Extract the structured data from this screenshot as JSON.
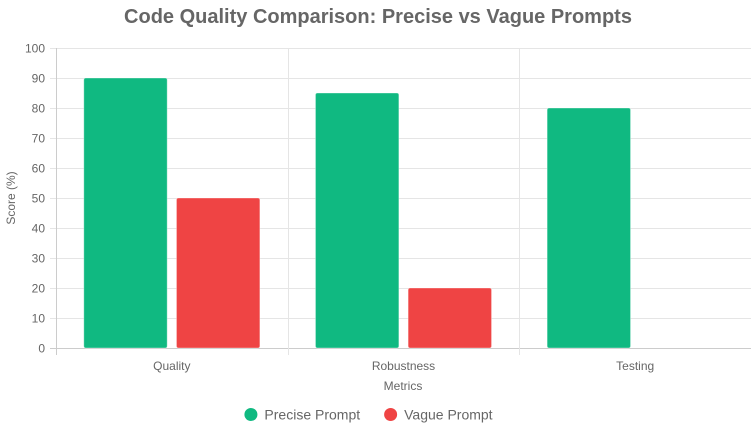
{
  "chart_data": {
    "type": "bar",
    "title": "Code Quality Comparison: Precise vs Vague Prompts",
    "xlabel": "Metrics",
    "ylabel": "Score (%)",
    "categories": [
      "Quality",
      "Robustness",
      "Testing"
    ],
    "ylim": [
      0,
      100
    ],
    "yticks": [
      "0",
      "10",
      "20",
      "30",
      "40",
      "50",
      "60",
      "70",
      "80",
      "90",
      "100"
    ],
    "grid": true,
    "legend_position": "bottom",
    "series": [
      {
        "name": "Precise Prompt",
        "values": [
          90,
          85,
          80
        ],
        "color": "#10b981"
      },
      {
        "name": "Vague Prompt",
        "values": [
          50,
          20,
          0
        ],
        "color": "#ef4444"
      }
    ]
  }
}
